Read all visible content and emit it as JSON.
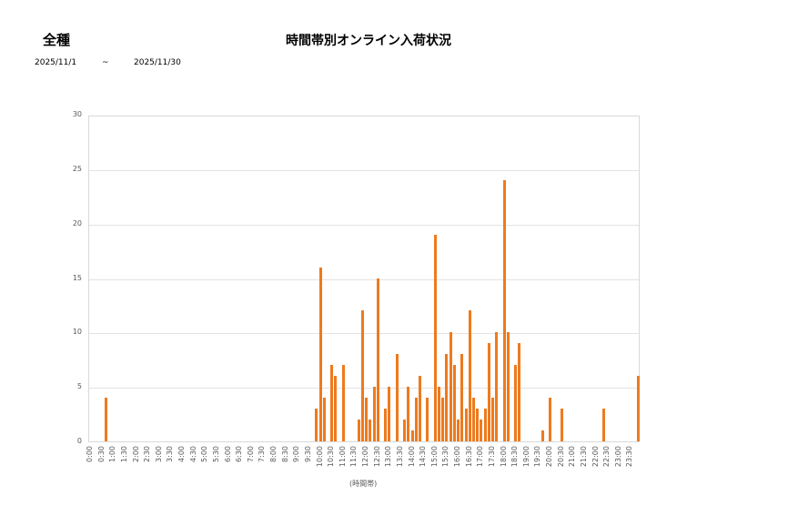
{
  "header": {
    "category": "全種",
    "title": "時間帯別オンライン入荷状況",
    "date_from": "2025/11/1",
    "tilde": "~",
    "date_to": "2025/11/30"
  },
  "colors": {
    "bar": "#EE7A1E",
    "grid": "#e3e3e3",
    "border": "#d9d9d9"
  },
  "chart_data": {
    "type": "bar",
    "title": "時間帯別オンライン入荷状況",
    "subtitle": "全種 2025/11/1 ~ 2025/11/30",
    "xlabel": "(時間帯)",
    "ylabel": "",
    "ylim": [
      0,
      30
    ],
    "yticks": [
      0,
      5,
      10,
      15,
      20,
      25,
      30
    ],
    "grid": true,
    "legend": null,
    "category_interval_minutes": 10,
    "x_tick_labels": [
      "0:00",
      "0:30",
      "1:00",
      "1:30",
      "2:00",
      "2:30",
      "3:00",
      "3:30",
      "4:00",
      "4:30",
      "5:00",
      "5:30",
      "6:00",
      "6:30",
      "7:00",
      "7:30",
      "8:00",
      "8:30",
      "9:00",
      "9:30",
      "10:00",
      "10:30",
      "11:00",
      "11:30",
      "12:00",
      "12:30",
      "13:00",
      "13:30",
      "14:00",
      "14:30",
      "15:00",
      "15:30",
      "16:00",
      "16:30",
      "17:00",
      "17:30",
      "18:00",
      "18:30",
      "19:00",
      "19:30",
      "20:00",
      "20:30",
      "21:00",
      "21:30",
      "22:00",
      "22:30",
      "23:00",
      "23:30"
    ],
    "values": [
      0,
      0,
      0,
      0,
      4,
      0,
      0,
      0,
      0,
      0,
      0,
      0,
      0,
      0,
      0,
      0,
      0,
      0,
      0,
      0,
      0,
      0,
      0,
      0,
      0,
      0,
      0,
      0,
      0,
      0,
      0,
      0,
      0,
      0,
      0,
      0,
      0,
      0,
      0,
      0,
      0,
      0,
      0,
      0,
      0,
      0,
      0,
      0,
      0,
      0,
      0,
      0,
      0,
      0,
      0,
      0,
      0,
      0,
      0,
      3,
      16,
      4,
      0,
      7,
      6,
      0,
      7,
      0,
      0,
      0,
      2,
      12,
      4,
      2,
      5,
      15,
      0,
      3,
      5,
      0,
      8,
      0,
      2,
      5,
      1,
      4,
      6,
      0,
      4,
      0,
      19,
      5,
      4,
      8,
      10,
      7,
      2,
      8,
      3,
      12,
      4,
      3,
      2,
      3,
      9,
      4,
      10,
      0,
      24,
      10,
      0,
      7,
      9,
      0,
      0,
      0,
      0,
      0,
      1,
      0,
      4,
      0,
      0,
      3,
      0,
      0,
      0,
      0,
      0,
      0,
      0,
      0,
      0,
      0,
      3,
      0,
      0,
      0,
      0,
      0,
      0,
      0,
      0,
      6
    ]
  }
}
